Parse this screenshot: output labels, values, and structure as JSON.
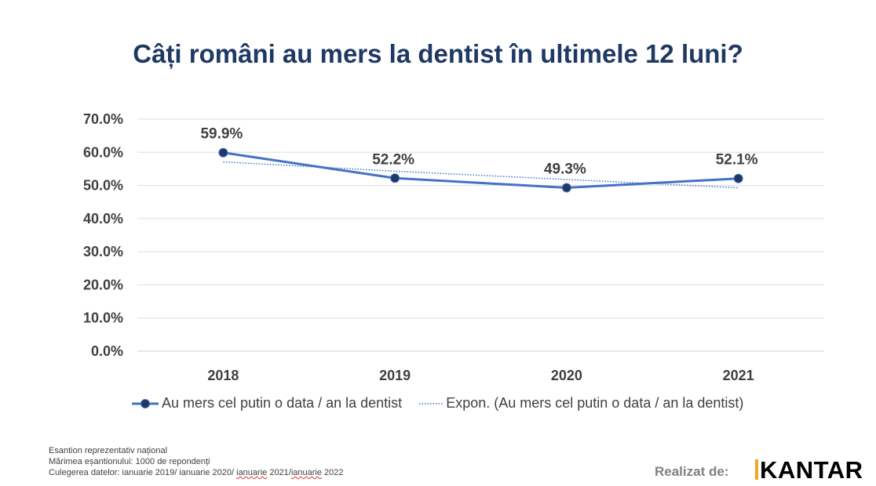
{
  "chart_data": {
    "type": "line",
    "title": "Câți români au mers la dentist în ultimele 12 luni?",
    "categories": [
      "2018",
      "2019",
      "2020",
      "2021"
    ],
    "series": [
      {
        "name": "Au mers cel putin o data / an la dentist",
        "values": [
          59.9,
          52.2,
          49.3,
          52.1
        ],
        "labels": [
          "59.9%",
          "52.2%",
          "49.3%",
          "52.1%"
        ],
        "color": "#4472c4",
        "marker_color": "#1f3864"
      },
      {
        "name": "Expon. (Au mers cel putin o data / an la dentist)",
        "values": [
          57.1,
          54.3,
          51.8,
          49.3
        ],
        "color": "#4472c4",
        "style": "dotted"
      }
    ],
    "y_ticks": [
      "0.0%",
      "10.0%",
      "20.0%",
      "30.0%",
      "40.0%",
      "50.0%",
      "60.0%",
      "70.0%"
    ],
    "ylim": [
      0,
      70
    ],
    "grid": true,
    "legend": "bottom"
  },
  "notes": {
    "line1": "Esantion reprezentativ național",
    "line2": "Mărimea eșantionului: 1000 de repondenți",
    "line3_prefix": "Culegerea datelor:  ianuarie 2019/ ianuarie 2020/ ",
    "line3_w1": "ianuarie",
    "line3_mid": " 2021/",
    "line3_w2": "ianuarie",
    "line3_suffix": " 2022"
  },
  "credit": {
    "label": "Realizat de:",
    "logo": "KANTAR"
  }
}
